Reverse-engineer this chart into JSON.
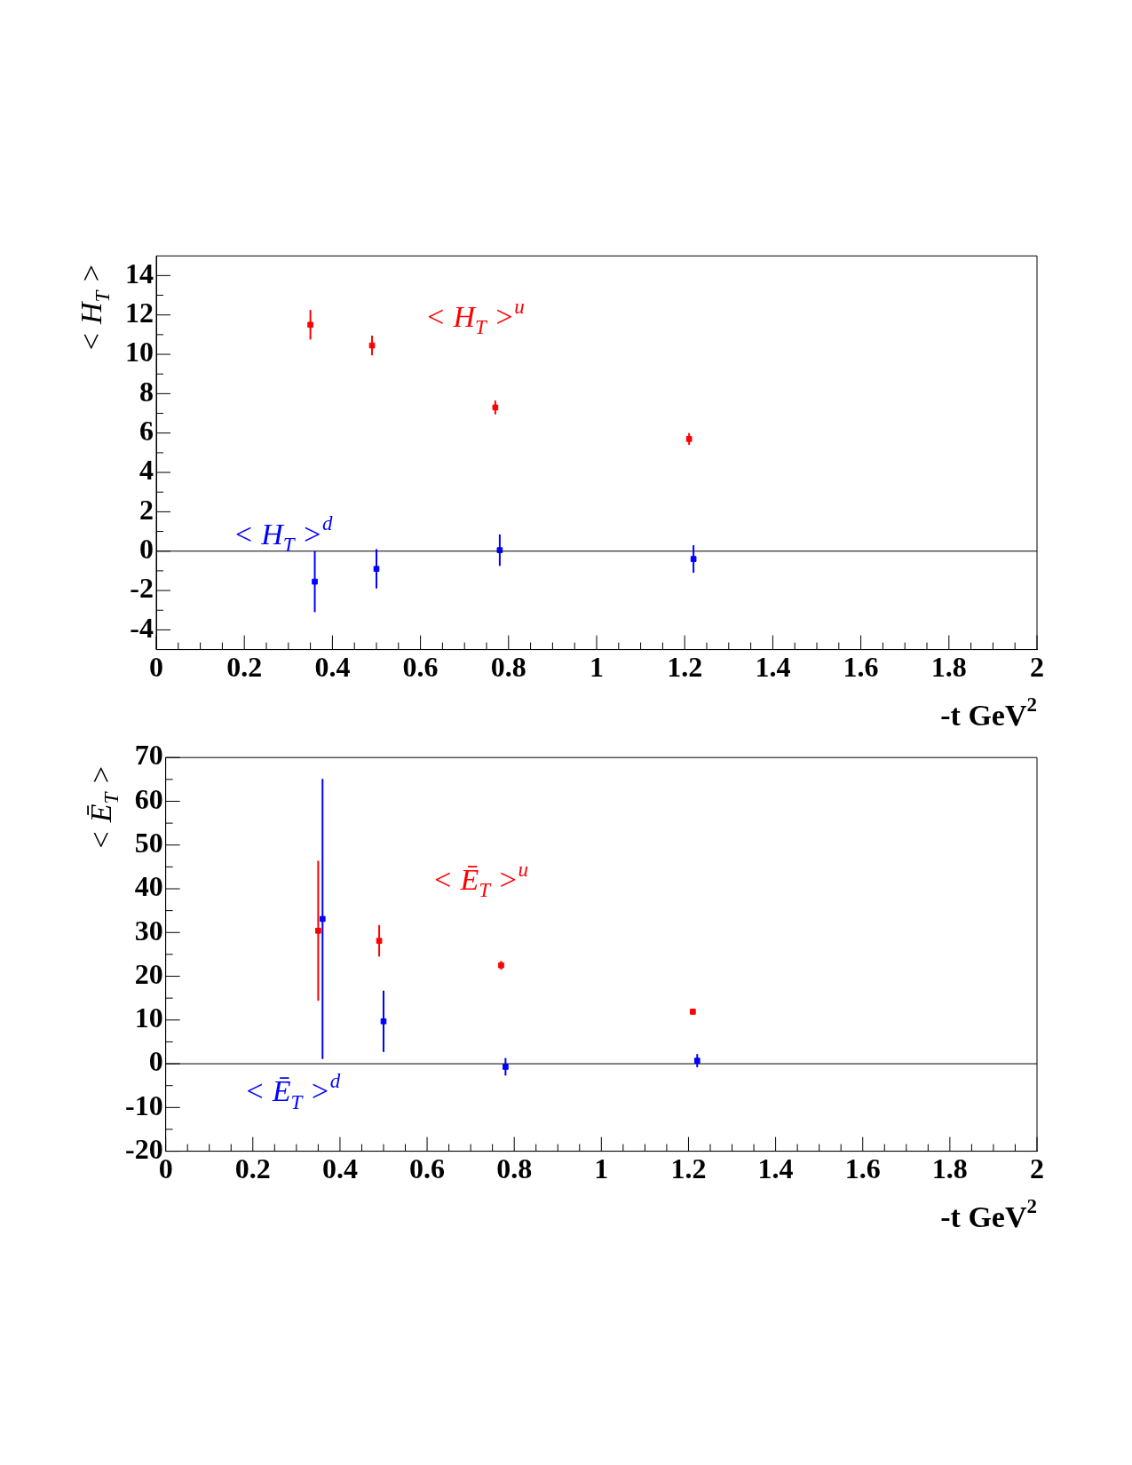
{
  "chart_data": [
    {
      "type": "scatter",
      "xlabel": "-t GeV$^{2}$",
      "ylabel": "< H$_{T}$ >",
      "xlim": [
        0,
        2
      ],
      "ylim": [
        -5,
        15
      ],
      "xticks": [
        0,
        0.2,
        0.4,
        0.6,
        0.8,
        1,
        1.2,
        1.4,
        1.6,
        1.8,
        2
      ],
      "yticks": [
        -4,
        -2,
        0,
        2,
        4,
        6,
        8,
        10,
        12,
        14
      ],
      "grid": false,
      "legend": false,
      "marker": "square",
      "ref_lines": [
        {
          "axis": "y",
          "value": 0,
          "color": "#000000"
        }
      ],
      "series": [
        {
          "name": "< H$_{T}$ >$^{u}$",
          "color": "#ff0000",
          "x": [
            0.35,
            0.49,
            0.77,
            1.21
          ],
          "values": [
            11.5,
            10.45,
            7.3,
            5.7
          ],
          "errors": [
            0.75,
            0.5,
            0.35,
            0.3
          ]
        },
        {
          "name": "< H$_{T}$ >$^{d}$",
          "color": "#0000ff",
          "x": [
            0.36,
            0.5,
            0.78,
            1.22
          ],
          "values": [
            -1.55,
            -0.9,
            0.05,
            -0.4
          ],
          "errors": [
            1.55,
            1.0,
            0.8,
            0.7
          ]
        }
      ]
    },
    {
      "type": "scatter",
      "xlabel": "-t GeV$^{2}$",
      "ylabel": "< Ē$_{T}$ >",
      "xlim": [
        0,
        2
      ],
      "ylim": [
        -20,
        70
      ],
      "xticks": [
        0,
        0.2,
        0.4,
        0.6,
        0.8,
        1,
        1.2,
        1.4,
        1.6,
        1.8,
        2
      ],
      "yticks": [
        -20,
        -10,
        0,
        10,
        20,
        30,
        40,
        50,
        60,
        70
      ],
      "grid": false,
      "legend": false,
      "marker": "square",
      "ref_lines": [
        {
          "axis": "y",
          "value": 0,
          "color": "#000000"
        }
      ],
      "series": [
        {
          "name": "< Ē$_{T}$ >$^{u}$",
          "color": "#ff0000",
          "x": [
            0.35,
            0.49,
            0.77,
            1.21
          ],
          "values": [
            30.4,
            28.1,
            22.5,
            11.9
          ],
          "errors": [
            16,
            3.6,
            1,
            0.7
          ]
        },
        {
          "name": "< Ē$_{T}$ >$^{d}$",
          "color": "#0000ff",
          "x": [
            0.36,
            0.5,
            0.78,
            1.22
          ],
          "values": [
            33.1,
            9.7,
            -0.7,
            0.7
          ],
          "errors": [
            32,
            7,
            2,
            1.5
          ]
        }
      ]
    }
  ]
}
